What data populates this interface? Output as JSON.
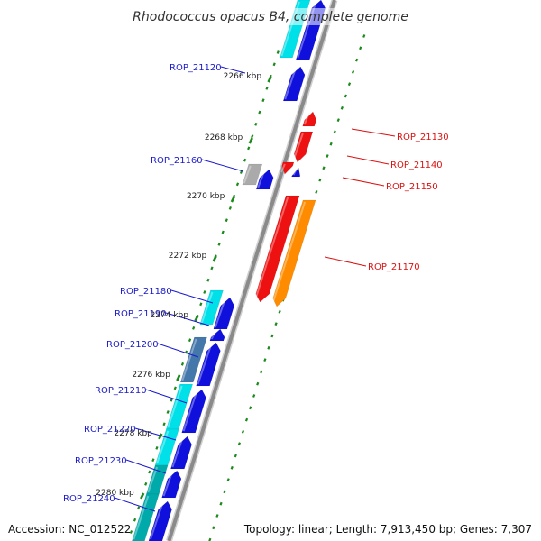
{
  "title": "Rhodococcus opacus B4, complete genome",
  "footer": {
    "accession": "Accession: NC_012522",
    "summary": "Topology: linear; Length: 7,913,450 bp; Genes: 7,307"
  },
  "colors": {
    "backbone": "#8a8a8a",
    "ticks": "#1a8a1a",
    "reverse_label": "#1a1acc",
    "forward_label": "#dd1111",
    "gene_blue": "#1010dd",
    "gene_cyan": "#00e0e8",
    "gene_red": "#ee1111",
    "gene_orange": "#ff8c00",
    "gene_gray": "#aaaaaa",
    "gene_steel": "#4477aa",
    "gene_teal": "#00aaaa"
  },
  "kbp_labels": [
    "2266 kbp",
    "2268 kbp",
    "2270 kbp",
    "2272 kbp",
    "2274 kbp",
    "2276 kbp",
    "2278 kbp",
    "2280 kbp"
  ],
  "genes_reverse_labels": [
    "ROP_21120",
    "ROP_21160",
    "ROP_21180",
    "ROP_21190",
    "ROP_21200",
    "ROP_21210",
    "ROP_21220",
    "ROP_21230",
    "ROP_21240"
  ],
  "genes_forward_labels": [
    "ROP_21130",
    "ROP_21140",
    "ROP_21150",
    "ROP_21170"
  ]
}
